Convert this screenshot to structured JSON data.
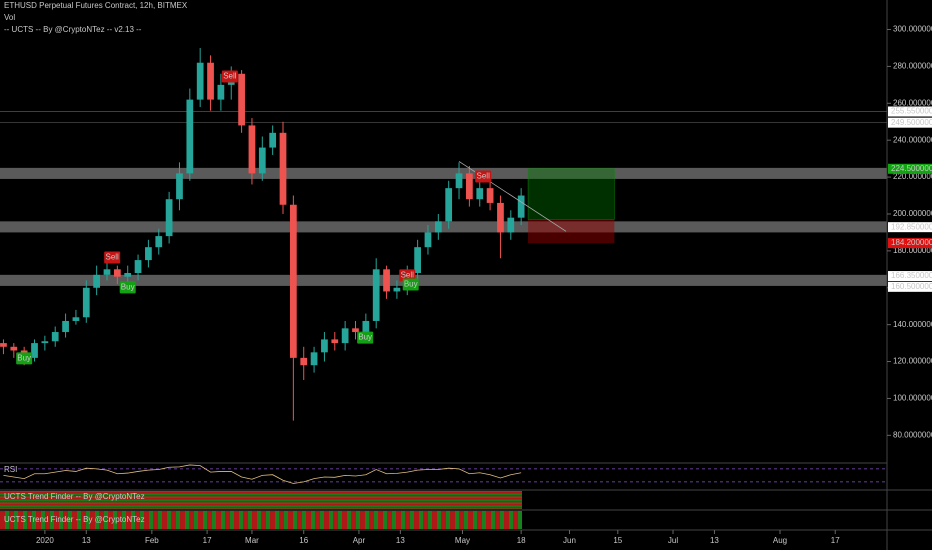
{
  "chart_data": {
    "type": "candlestick",
    "title": "ETHUSD Perpetual Futures Contract, 12h, BITMEX",
    "legend_items": [
      "Vol",
      "-- UCTS -- By @CryptoNTez -- v2.13 --"
    ],
    "x": [
      -12,
      -9,
      -6,
      -3,
      0,
      3,
      6,
      9,
      12,
      15,
      18,
      21,
      24,
      27,
      30,
      33,
      36,
      39,
      42,
      45,
      48,
      51,
      54,
      57,
      60,
      63,
      66,
      69,
      72,
      75,
      78,
      81,
      84,
      87,
      90,
      93,
      96,
      99,
      102,
      105,
      108,
      111,
      114,
      117,
      120,
      123,
      126,
      129,
      132,
      135,
      138
    ],
    "open": [
      130,
      128,
      126,
      122,
      130,
      131,
      136,
      142,
      144,
      160,
      167,
      170,
      166,
      168,
      175,
      182,
      188,
      208,
      222,
      262,
      282,
      262,
      270,
      276,
      248,
      222,
      236,
      244,
      205,
      122,
      118,
      125,
      132,
      130,
      138,
      136,
      142,
      170,
      158,
      160,
      168,
      182,
      190,
      196,
      214,
      222,
      208,
      214,
      206,
      190,
      198
    ],
    "high": [
      132,
      130,
      128,
      132,
      134,
      139,
      146,
      148,
      164,
      172,
      174,
      172,
      172,
      178,
      186,
      192,
      212,
      228,
      268,
      290,
      286,
      276,
      280,
      278,
      252,
      242,
      248,
      250,
      210,
      128,
      128,
      136,
      136,
      142,
      142,
      146,
      176,
      172,
      164,
      172,
      186,
      194,
      200,
      218,
      228,
      226,
      218,
      218,
      210,
      202,
      214
    ],
    "low": [
      124,
      122,
      118,
      120,
      126,
      128,
      133,
      140,
      141,
      156,
      164,
      162,
      162,
      164,
      171,
      178,
      184,
      202,
      218,
      258,
      256,
      256,
      262,
      244,
      216,
      218,
      232,
      200,
      88,
      110,
      114,
      120,
      126,
      126,
      132,
      132,
      138,
      154,
      154,
      156,
      164,
      178,
      186,
      192,
      208,
      204,
      204,
      202,
      176,
      186,
      194
    ],
    "close": [
      128,
      126,
      122,
      130,
      131,
      136,
      142,
      144,
      160,
      167,
      170,
      166,
      168,
      175,
      182,
      188,
      208,
      222,
      262,
      282,
      262,
      270,
      276,
      248,
      222,
      236,
      244,
      205,
      122,
      118,
      125,
      132,
      130,
      138,
      136,
      142,
      170,
      158,
      160,
      168,
      182,
      190,
      196,
      214,
      222,
      208,
      214,
      206,
      190,
      198,
      210
    ],
    "up_color": "#26a69a",
    "down_color": "#ef5350",
    "xlim": [
      -13,
      244
    ],
    "xticks": [
      {
        "value": 0,
        "label": "2020"
      },
      {
        "value": 12,
        "label": "13"
      },
      {
        "value": 31,
        "label": "Feb"
      },
      {
        "value": 47,
        "label": "17"
      },
      {
        "value": 60,
        "label": "Mar"
      },
      {
        "value": 75,
        "label": "16"
      },
      {
        "value": 91,
        "label": "Apr"
      },
      {
        "value": 103,
        "label": "13"
      },
      {
        "value": 121,
        "label": "May"
      },
      {
        "value": 138,
        "label": "18"
      },
      {
        "value": 152,
        "label": "Jun"
      },
      {
        "value": 166,
        "label": "15"
      },
      {
        "value": 182,
        "label": "Jul"
      },
      {
        "value": 194,
        "label": "13"
      },
      {
        "value": 213,
        "label": "Aug"
      },
      {
        "value": 229,
        "label": "17"
      }
    ],
    "ylim": [
      65,
      316
    ],
    "yticks": [
      {
        "value": 300,
        "label": "300.00000000"
      },
      {
        "value": 280,
        "label": "280.00000000"
      },
      {
        "value": 260,
        "label": "260.00000000"
      },
      {
        "value": 240,
        "label": "240.00000000"
      },
      {
        "value": 220,
        "label": "220.00000000"
      },
      {
        "value": 200,
        "label": "200.00000000"
      },
      {
        "value": 180,
        "label": "180.00000000"
      },
      {
        "value": 160,
        "label": "160.00000000"
      },
      {
        "value": 140,
        "label": "140.00000000"
      },
      {
        "value": 120,
        "label": "120.00000000"
      },
      {
        "value": 100,
        "label": "100.00000000"
      },
      {
        "value": 80,
        "label": "80.00000000"
      }
    ],
    "zones": [
      [
        219,
        225
      ],
      [
        190,
        196
      ],
      [
        161,
        167
      ]
    ],
    "hlines": [
      255.55,
      249.5
    ],
    "price_labels": [
      {
        "value": 255.55,
        "label": "255.55000000",
        "color": "#ffffff"
      },
      {
        "value": 249.5,
        "label": "249.50000000",
        "color": "#ffffff"
      },
      {
        "value": 224.5,
        "label": "224.50000000",
        "color": "#13a313"
      },
      {
        "value": 192.85,
        "label": "192.85000000",
        "color": "#ffffff"
      },
      {
        "value": 184.2,
        "label": "184.20000000",
        "color": "#e01010"
      },
      {
        "value": 166.35,
        "label": "166.35000000",
        "color": "#ffffff"
      },
      {
        "value": 160.5,
        "label": "160.50000000",
        "color": "#ffffff"
      }
    ],
    "position": {
      "x": [
        140,
        165
      ],
      "entry": 197,
      "target": 224.5,
      "stop": 184.2
    },
    "trendline": {
      "x": [
        120,
        151
      ],
      "y": [
        228.5,
        190.6
      ]
    },
    "annotations": [
      {
        "text": "Buy",
        "x": -6,
        "y": 121.7
      },
      {
        "text": "Sell",
        "x": 19.5,
        "y": 176.4
      },
      {
        "text": "Buy",
        "x": 24,
        "y": 160.2
      },
      {
        "text": "Sell",
        "x": 53.6,
        "y": 274.5
      },
      {
        "text": "Buy",
        "x": 92.8,
        "y": 133
      },
      {
        "text": "Sell",
        "x": 105,
        "y": 166.7
      },
      {
        "text": "Buy",
        "x": 106,
        "y": 161.8
      },
      {
        "text": "Sell",
        "x": 127,
        "y": 220.3
      }
    ],
    "rsi_title": "RSI",
    "rsi": [
      50,
      45,
      40,
      55,
      55,
      60,
      65,
      62,
      72,
      70,
      66,
      55,
      57,
      62,
      66,
      68,
      75,
      76,
      82,
      80,
      60,
      62,
      62,
      45,
      38,
      50,
      52,
      35,
      25,
      30,
      40,
      45,
      44,
      50,
      48,
      52,
      68,
      55,
      56,
      60,
      66,
      68,
      68,
      72,
      70,
      55,
      58,
      52,
      42,
      52,
      58
    ],
    "rsi_ylim": [
      5,
      88
    ],
    "rsi_levels": [
      70,
      30
    ],
    "trend_panes": [
      "UCTS Trend Finder -- By @CryptoNTez",
      "UCTS Trend Finder -- By @CryptoNTez"
    ]
  }
}
